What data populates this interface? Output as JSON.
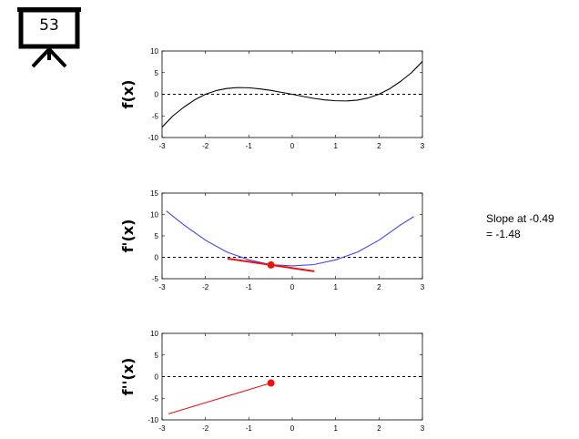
{
  "slide": {
    "number": "53"
  },
  "note": {
    "line1": "Slope at -0.49",
    "line2": "= -1.48"
  },
  "chart_data": [
    {
      "type": "line",
      "ylabel": "f(x)",
      "xlim": [
        -3,
        3
      ],
      "ylim": [
        -10,
        10
      ],
      "xticks": [
        "-3",
        "-2",
        "-1",
        "0",
        "1",
        "2",
        "3"
      ],
      "yticks": [
        "-10",
        "-5",
        "0",
        "5",
        "10"
      ],
      "reference_line": {
        "y": 0,
        "style": "dashed"
      },
      "series": [
        {
          "color": "#000000",
          "x": [
            -3.0,
            -2.75,
            -2.5,
            -2.25,
            -2.0,
            -1.75,
            -1.5,
            -1.25,
            -1.0,
            -0.75,
            -0.5,
            -0.25,
            0.0,
            0.25,
            0.5,
            0.75,
            1.0,
            1.25,
            1.5,
            1.75,
            2.0,
            2.25,
            2.5,
            2.75,
            3.0
          ],
          "y": [
            -7.6,
            -5.0,
            -3.0,
            -1.3,
            0.0,
            0.85,
            1.35,
            1.55,
            1.5,
            1.25,
            0.9,
            0.45,
            0.0,
            -0.5,
            -0.95,
            -1.3,
            -1.5,
            -1.55,
            -1.35,
            -0.85,
            0.0,
            1.3,
            3.0,
            5.0,
            7.6
          ]
        }
      ]
    },
    {
      "type": "line",
      "ylabel": "f'(x)",
      "xlim": [
        -3,
        3
      ],
      "ylim": [
        -5,
        15
      ],
      "xticks": [
        "-3",
        "-2",
        "-1",
        "0",
        "1",
        "2",
        "3"
      ],
      "yticks": [
        "-5",
        "0",
        "5",
        "10",
        "15"
      ],
      "reference_line": {
        "y": 0,
        "style": "dashed"
      },
      "series": [
        {
          "color": "#4444ee",
          "x": [
            -2.9,
            -2.5,
            -2.0,
            -1.5,
            -1.0,
            -0.5,
            0.0,
            0.5,
            1.0,
            1.5,
            2.0,
            2.5,
            2.8
          ],
          "y": [
            10.8,
            7.6,
            4.0,
            1.2,
            -0.6,
            -1.7,
            -2.0,
            -1.7,
            -0.6,
            1.2,
            4.0,
            7.6,
            9.5
          ]
        },
        {
          "color": "#ee1111",
          "x": [
            -1.49,
            0.51
          ],
          "y": [
            -0.31,
            -3.27
          ]
        }
      ],
      "points": [
        {
          "x": -0.49,
          "y": -1.79,
          "color": "#ee1111"
        }
      ]
    },
    {
      "type": "line",
      "ylabel": "f''(x)",
      "xlim": [
        -3,
        3
      ],
      "ylim": [
        -10,
        10
      ],
      "xticks": [
        "-3",
        "-2",
        "-1",
        "0",
        "1",
        "2",
        "3"
      ],
      "yticks": [
        "-10",
        "-5",
        "0",
        "5",
        "10"
      ],
      "reference_line": {
        "y": 0,
        "style": "dashed"
      },
      "series": [
        {
          "color": "#ee1111",
          "x": [
            -2.85,
            -0.49
          ],
          "y": [
            -8.6,
            -1.48
          ]
        }
      ],
      "points": [
        {
          "x": -0.49,
          "y": -1.48,
          "color": "#ee1111"
        }
      ]
    }
  ]
}
